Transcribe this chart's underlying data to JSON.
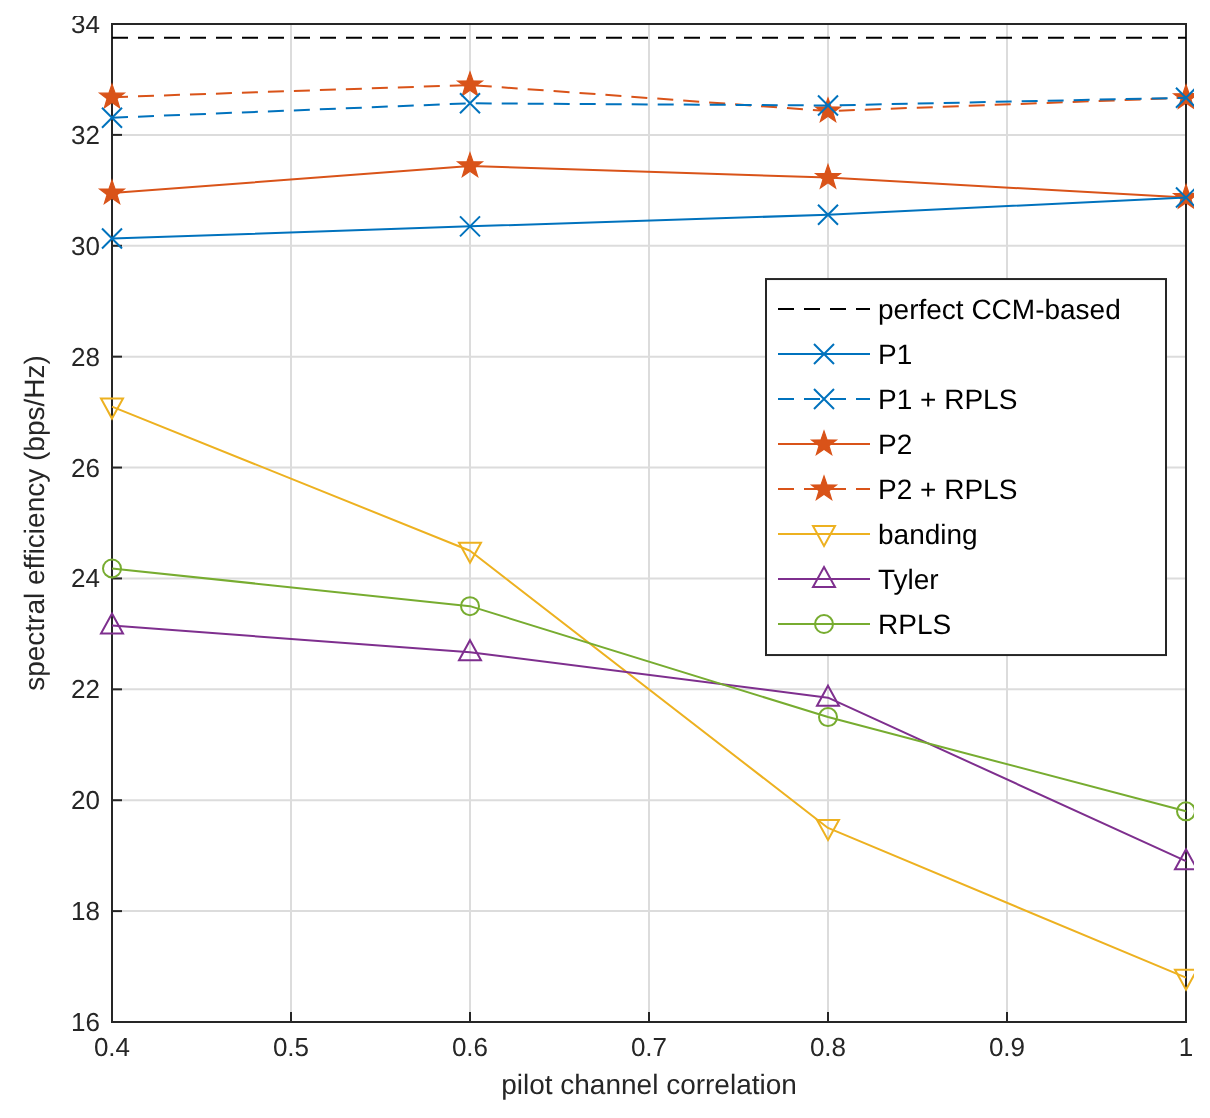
{
  "chart_data": {
    "type": "line",
    "xlabel": "pilot channel correlation",
    "ylabel": "spectral efficiency (bps/Hz)",
    "x": [
      0.4,
      0.6,
      0.8,
      1
    ],
    "xlim": [
      0.4,
      1
    ],
    "xticks": [
      0.4,
      0.5,
      0.6,
      0.7,
      0.8,
      0.9,
      1
    ],
    "ylim": [
      16,
      34
    ],
    "yticks": [
      16,
      18,
      20,
      22,
      24,
      26,
      28,
      30,
      32,
      34
    ],
    "grid": true,
    "legend": "top right",
    "series": [
      {
        "name": "perfect CCM-based",
        "color": "#000000",
        "values": [
          33.75,
          33.75,
          33.75,
          33.75
        ],
        "line_style": "dashed",
        "marker": "none"
      },
      {
        "name": "P1",
        "color": "#0072bd",
        "values": [
          30.13,
          30.35,
          30.56,
          30.87
        ],
        "line_style": "solid",
        "marker": "cross"
      },
      {
        "name": "P1 + RPLS",
        "color": "#0072bd",
        "values": [
          32.31,
          32.57,
          32.53,
          32.67
        ],
        "line_style": "dashed",
        "marker": "cross"
      },
      {
        "name": "P2",
        "color": "#d95319",
        "values": [
          30.95,
          31.44,
          31.23,
          30.87
        ],
        "line_style": "solid",
        "marker": "star"
      },
      {
        "name": "P2 + RPLS",
        "color": "#d95319",
        "values": [
          32.68,
          32.9,
          32.43,
          32.67
        ],
        "line_style": "dashed",
        "marker": "star"
      },
      {
        "name": "banding",
        "color": "#edb120",
        "values": [
          27.1,
          24.5,
          19.5,
          16.8
        ],
        "line_style": "solid",
        "marker": "triangle-down"
      },
      {
        "name": "Tyler",
        "color": "#7e2f8e",
        "values": [
          23.15,
          22.67,
          21.85,
          18.9
        ],
        "line_style": "solid",
        "marker": "triangle"
      },
      {
        "name": "RPLS",
        "color": "#77ac30",
        "values": [
          24.18,
          23.5,
          21.5,
          19.8
        ],
        "line_style": "solid",
        "marker": "circle"
      }
    ]
  }
}
